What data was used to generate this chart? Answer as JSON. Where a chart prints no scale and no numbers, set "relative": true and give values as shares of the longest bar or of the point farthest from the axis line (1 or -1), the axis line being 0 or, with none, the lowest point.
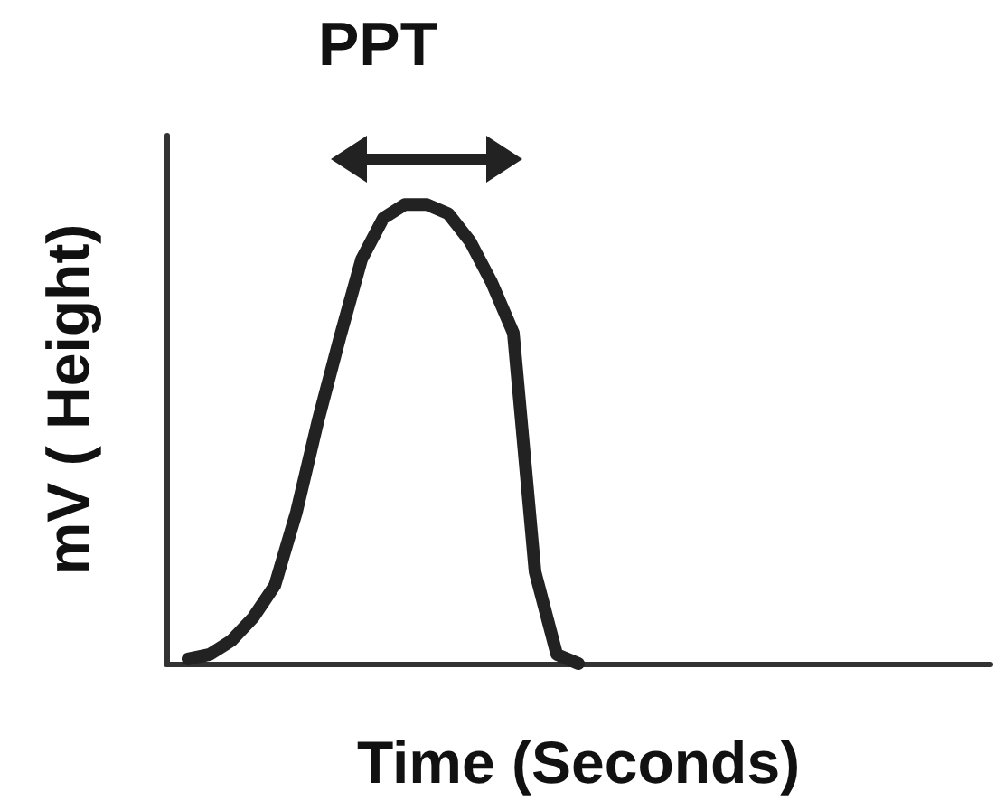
{
  "chart_data": {
    "type": "line",
    "xlabel": "Time (Seconds)",
    "ylabel": "mV ( Height)",
    "annotations": [
      "PPT"
    ],
    "relative": true,
    "grid": false,
    "line_style": "solid",
    "categories": [
      null,
      null,
      null,
      null,
      null,
      null,
      null,
      null,
      null,
      null,
      null,
      null,
      null,
      null,
      null,
      null,
      null,
      null,
      null,
      null,
      null,
      null,
      null,
      null,
      null,
      null,
      null,
      null,
      null,
      null,
      null,
      null,
      null,
      null,
      null,
      null,
      null,
      null,
      null
    ],
    "series": [
      {
        "color": "#222222",
        "values": [
          null,
          0.01,
          0.02,
          0.05,
          0.1,
          0.17,
          0.33,
          0.53,
          0.71,
          0.88,
          0.97,
          1,
          1,
          0.98,
          0.92,
          0.83,
          0.72,
          0.2,
          0.02,
          0,
          null,
          null,
          null,
          null,
          null,
          null,
          null,
          null,
          null,
          null,
          null,
          null,
          null,
          null,
          null,
          null,
          null,
          null,
          null
        ]
      }
    ]
  }
}
